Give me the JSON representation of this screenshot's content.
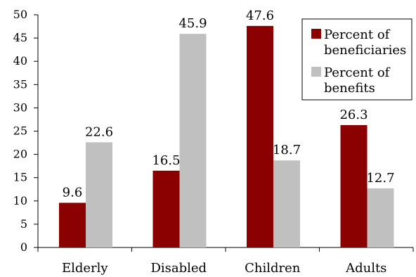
{
  "chart_data": {
    "type": "bar",
    "categories": [
      "Elderly",
      "Disabled",
      "Children",
      "Adults"
    ],
    "series": [
      {
        "name": "Percent of beneficiaries",
        "legend_lines": [
          "Percent of",
          "beneficiaries"
        ],
        "color": "#8b0000",
        "values": [
          9.6,
          16.5,
          47.6,
          26.3
        ],
        "labels": [
          "9.6",
          "16.5",
          "47.6",
          "26.3"
        ]
      },
      {
        "name": "Percent of benefits",
        "legend_lines": [
          "Percent of",
          "benefits"
        ],
        "color": "#c0c0c0",
        "values": [
          22.6,
          45.9,
          18.7,
          12.7
        ],
        "labels": [
          "22.6",
          "45.9",
          "18.7",
          "12.7"
        ]
      }
    ],
    "ylim": [
      0,
      50
    ],
    "yticks": [
      0,
      5,
      10,
      15,
      20,
      25,
      30,
      35,
      40,
      45,
      50
    ],
    "grid": false,
    "legend_position": "top-right",
    "title": "",
    "xlabel": "",
    "ylabel": ""
  }
}
